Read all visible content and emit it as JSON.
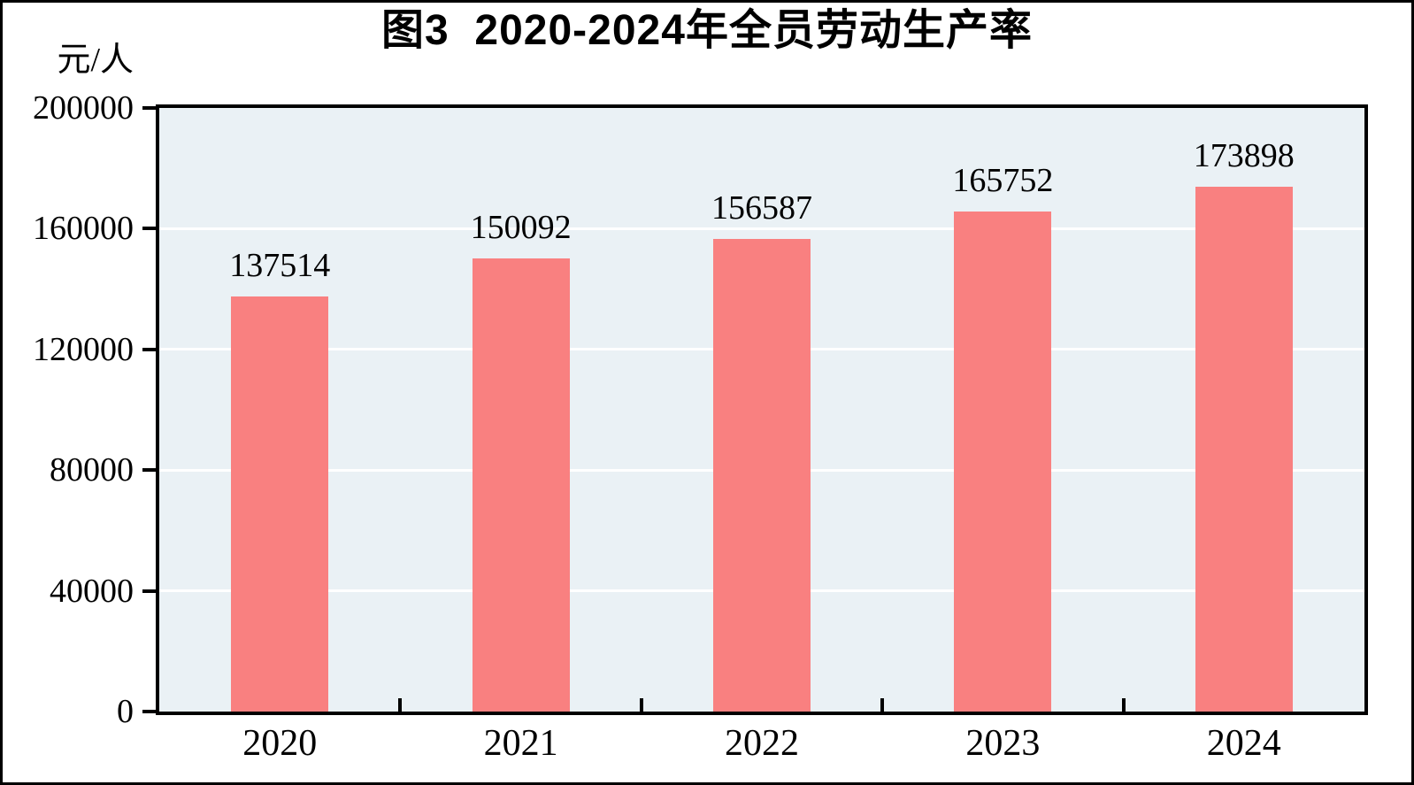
{
  "chart_data": {
    "type": "bar",
    "title": "图3  2020-2024年全员劳动生产率",
    "unit_label": "元/人",
    "categories": [
      "2020",
      "2021",
      "2022",
      "2023",
      "2024"
    ],
    "values": [
      137514,
      150092,
      156587,
      165752,
      173898
    ],
    "ylim": [
      0,
      200000
    ],
    "yticks": [
      0,
      40000,
      80000,
      120000,
      160000,
      200000
    ],
    "ytick_labels": [
      "0",
      "40000",
      "80000",
      "120000",
      "160000",
      "200000"
    ],
    "grid": "horizontal white gridlines at y ticks, bars drawn over gridlines",
    "legend": "none",
    "colors": {
      "bar": "#f98080",
      "plot_background": "#eaf1f5",
      "gridline": "#ffffff",
      "axis": "#000000",
      "text": "#000000",
      "frame": "#000000"
    }
  }
}
